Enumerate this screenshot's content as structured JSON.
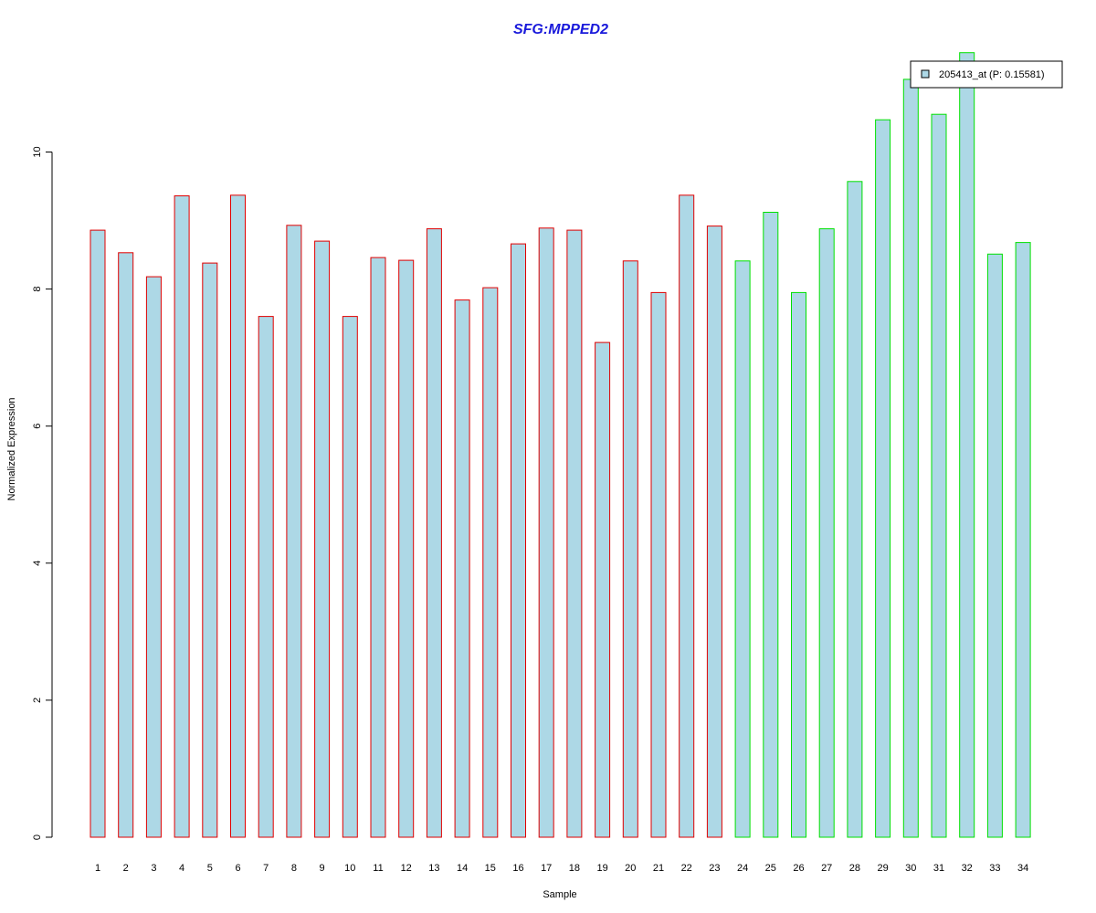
{
  "chart_data": {
    "type": "bar",
    "title": "SFG:MPPED2",
    "xlabel": "Sample",
    "ylabel": "Normalized Expression",
    "categories": [
      "1",
      "2",
      "3",
      "4",
      "5",
      "6",
      "7",
      "8",
      "9",
      "10",
      "11",
      "12",
      "13",
      "14",
      "15",
      "16",
      "17",
      "18",
      "19",
      "20",
      "21",
      "22",
      "23",
      "24",
      "25",
      "26",
      "27",
      "28",
      "29",
      "30",
      "31",
      "32",
      "33",
      "34"
    ],
    "series": [
      {
        "name": "205413_at (P: 0.15581)",
        "values": [
          8.86,
          8.53,
          8.18,
          9.36,
          8.38,
          9.37,
          7.6,
          8.93,
          8.7,
          7.6,
          8.46,
          8.42,
          8.88,
          7.84,
          8.02,
          8.66,
          8.89,
          8.86,
          7.22,
          8.41,
          7.95,
          9.37,
          8.92,
          8.41,
          9.12,
          7.95,
          8.88,
          9.57,
          10.47,
          11.06,
          10.55,
          11.45,
          8.51,
          8.68
        ]
      }
    ],
    "groups": [
      {
        "samples": "1-23",
        "border_color": "#e00000"
      },
      {
        "samples": "24-34",
        "border_color": "#00e000"
      }
    ],
    "bar_fill": "#add8e6",
    "ylim": [
      0,
      11.45
    ],
    "yticks": [
      0,
      2,
      4,
      6,
      8,
      10
    ],
    "grid": false,
    "legend": {
      "placement": "top-right",
      "label": "205413_at (P: 0.15581)"
    }
  }
}
